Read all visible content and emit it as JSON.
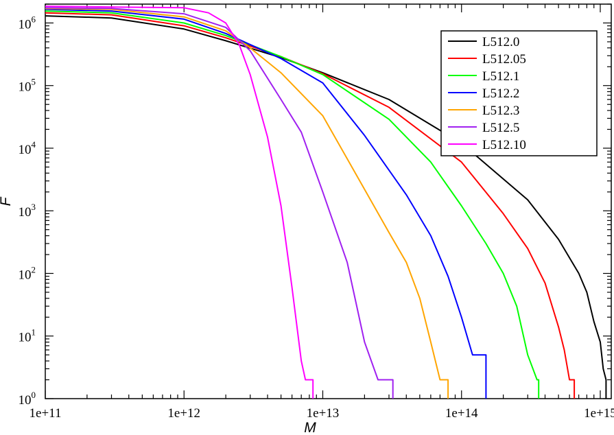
{
  "chart_data": {
    "type": "line",
    "title": "",
    "xlabel": "M",
    "ylabel": "F",
    "xscale": "log",
    "yscale": "log",
    "xlim": [
      100000000000.0,
      1200000000000000.0
    ],
    "ylim": [
      1,
      2000000.0
    ],
    "x_ticks": [
      {
        "value": 100000000000.0,
        "label": "1e+11"
      },
      {
        "value": 1000000000000.0,
        "label": "1e+12"
      },
      {
        "value": 10000000000000.0,
        "label": "1e+13"
      },
      {
        "value": 100000000000000.0,
        "label": "1e+14"
      },
      {
        "value": 1000000000000000.0,
        "label": "1e+15"
      }
    ],
    "y_ticks": [
      {
        "value": 1,
        "base": "10",
        "exp": "0"
      },
      {
        "value": 10,
        "base": "10",
        "exp": "1"
      },
      {
        "value": 100,
        "base": "10",
        "exp": "2"
      },
      {
        "value": 1000,
        "base": "10",
        "exp": "3"
      },
      {
        "value": 10000,
        "base": "10",
        "exp": "4"
      },
      {
        "value": 100000,
        "base": "10",
        "exp": "5"
      },
      {
        "value": 1000000,
        "base": "10",
        "exp": "6"
      }
    ],
    "grid": false,
    "legend_position": "top-right",
    "series": [
      {
        "name": "L512.0",
        "color": "#000000",
        "x": [
          100000000000.0,
          300000000000.0,
          1000000000000.0,
          2000000000000.0,
          5000000000000.0,
          10000000000000.0,
          30000000000000.0,
          100000000000000.0,
          300000000000000.0,
          500000000000000.0,
          700000000000000.0,
          800000000000000.0,
          900000000000000.0,
          1000000000000000.0,
          1050000000000000.0,
          1100000000000000.0,
          1100000000000000.0
        ],
        "y": [
          1300000.0,
          1200000.0,
          800000.0,
          520000.0,
          280000.0,
          160000.0,
          60000.0,
          12000.0,
          1500.0,
          350,
          100,
          50,
          17,
          8,
          3,
          2,
          1
        ]
      },
      {
        "name": "L512.05",
        "color": "#ff0000",
        "x": [
          100000000000.0,
          300000000000.0,
          1000000000000.0,
          2000000000000.0,
          5000000000000.0,
          10000000000000.0,
          30000000000000.0,
          100000000000000.0,
          200000000000000.0,
          300000000000000.0,
          400000000000000.0,
          500000000000000.0,
          550000000000000.0,
          600000000000000.0,
          650000000000000.0,
          650000000000000.0
        ],
        "y": [
          1450000.0,
          1350000.0,
          900000.0,
          580000.0,
          290000.0,
          155000.0,
          45000.0,
          6000.0,
          900,
          250,
          70,
          14,
          6,
          2,
          2,
          1
        ]
      },
      {
        "name": "L512.1",
        "color": "#00ff00",
        "x": [
          100000000000.0,
          300000000000.0,
          1000000000000.0,
          2000000000000.0,
          5000000000000.0,
          10000000000000.0,
          30000000000000.0,
          60000000000000.0,
          100000000000000.0,
          150000000000000.0,
          200000000000000.0,
          250000000000000.0,
          300000000000000.0,
          350000000000000.0,
          360000000000000.0,
          360000000000000.0
        ],
        "y": [
          1550000.0,
          1450000.0,
          1000000.0,
          630000.0,
          290000.0,
          150000.0,
          29000.0,
          6000.0,
          1200.0,
          300,
          100,
          30,
          5,
          2,
          2,
          1
        ]
      },
      {
        "name": "L512.2",
        "color": "#0000ff",
        "x": [
          100000000000.0,
          300000000000.0,
          1000000000000.0,
          2000000000000.0,
          5000000000000.0,
          10000000000000.0,
          20000000000000.0,
          40000000000000.0,
          60000000000000.0,
          80000000000000.0,
          100000000000000.0,
          120000000000000.0,
          150000000000000.0,
          150000000000000.0
        ],
        "y": [
          1650000.0,
          1550000.0,
          1150000.0,
          680000.0,
          270000.0,
          110000.0,
          16000.0,
          1800.0,
          400,
          90,
          20,
          5,
          5,
          1
        ]
      },
      {
        "name": "L512.3",
        "color": "#ffa500",
        "x": [
          100000000000.0,
          300000000000.0,
          1000000000000.0,
          2000000000000.0,
          3000000000000.0,
          5000000000000.0,
          10000000000000.0,
          20000000000000.0,
          30000000000000.0,
          40000000000000.0,
          50000000000000.0,
          60000000000000.0,
          70000000000000.0,
          80000000000000.0,
          80000000000000.0
        ],
        "y": [
          1700000.0,
          1650000.0,
          1250000.0,
          750000.0,
          400000.0,
          160000.0,
          33000.0,
          2200.0,
          450,
          150,
          40,
          8,
          2,
          2,
          1
        ]
      },
      {
        "name": "L512.5",
        "color": "#a020f0",
        "x": [
          100000000000.0,
          300000000000.0,
          1000000000000.0,
          2000000000000.0,
          3000000000000.0,
          5000000000000.0,
          7000000000000.0,
          10000000000000.0,
          15000000000000.0,
          20000000000000.0,
          25000000000000.0,
          32000000000000.0,
          32000000000000.0
        ],
        "y": [
          1750000.0,
          1700000.0,
          1400000.0,
          850000.0,
          360000.0,
          60000.0,
          18000.0,
          2000.0,
          150,
          8,
          2,
          2,
          1
        ]
      },
      {
        "name": "L512.10",
        "color": "#ff00ff",
        "x": [
          100000000000.0,
          300000000000.0,
          1000000000000.0,
          1500000000000.0,
          2000000000000.0,
          2500000000000.0,
          3000000000000.0,
          4000000000000.0,
          5000000000000.0,
          6000000000000.0,
          7000000000000.0,
          7500000000000.0,
          8500000000000.0,
          8500000000000.0
        ],
        "y": [
          1850000.0,
          1800000.0,
          1750000.0,
          1450000.0,
          1000000.0,
          450000.0,
          150000.0,
          15000.0,
          1200.0,
          60,
          4,
          2,
          2,
          1
        ]
      }
    ]
  }
}
